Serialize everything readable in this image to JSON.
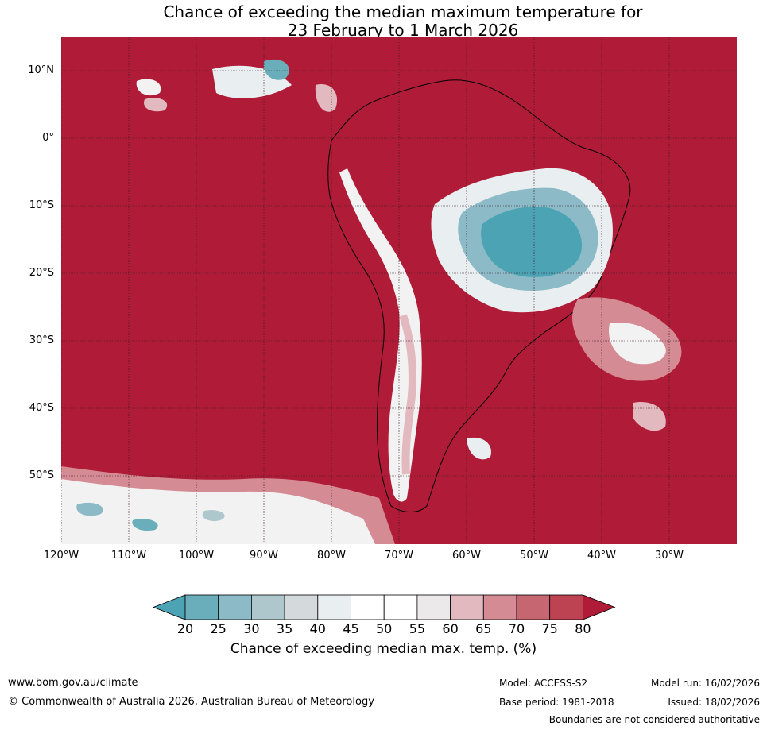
{
  "title": {
    "line1": "Chance of exceeding the median maximum temperature for",
    "line2": "23 February to 1 March 2026"
  },
  "map": {
    "lat_labels": [
      "10°N",
      "0°",
      "10°S",
      "20°S",
      "30°S",
      "40°S",
      "50°S"
    ],
    "lon_labels": [
      "120°W",
      "110°W",
      "100°W",
      "90°W",
      "80°W",
      "70°W",
      "60°W",
      "50°W",
      "40°W",
      "30°W"
    ]
  },
  "colorbar": {
    "ticks": [
      "20",
      "25",
      "30",
      "35",
      "40",
      "45",
      "50",
      "55",
      "60",
      "65",
      "70",
      "75",
      "80"
    ],
    "colors": [
      "#4ba3b4",
      "#6aadbb",
      "#8cbac6",
      "#aec7cd",
      "#d4d9dc",
      "#e9eff1",
      "#ffffff",
      "#ffffff",
      "#ebe9ea",
      "#e2b9bf",
      "#d48b94",
      "#c66670",
      "#bd4352",
      "#b01c37"
    ],
    "label": "Chance of exceeding median max. temp. (%)"
  },
  "footer": {
    "url": "www.bom.gov.au/climate",
    "copyright": "© Commonwealth of Australia 2026, Australian Bureau of Meteorology",
    "model": "Model: ACCESS-S2",
    "base_period": "Base period: 1981-2018",
    "model_run": "Model run: 16/02/2026",
    "issued": "Issued: 18/02/2026",
    "disclaimer": "Boundaries are not considered authoritative"
  }
}
